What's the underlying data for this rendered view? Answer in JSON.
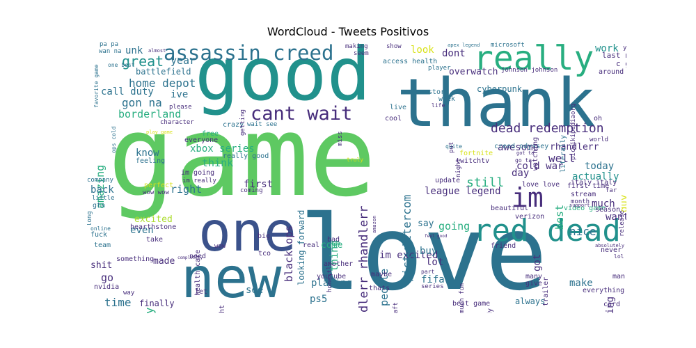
{
  "title": "WordCloud - Tweets Positivos",
  "words": [
    "game",
    "love",
    "good",
    "thank",
    "one",
    "new",
    "red dead",
    "really",
    "im",
    "assassin creed",
    "cant wait",
    "dead redemption",
    "great",
    "year",
    "home depot",
    "call duty",
    "gon na",
    "borderland",
    "unk",
    "ive",
    "amazing",
    "xbox series",
    "know",
    "think",
    "right",
    "back",
    "excited",
    "even",
    "fun",
    "play",
    "time",
    "go",
    "shit",
    "made",
    "damn",
    "feel",
    "black ops",
    "looking forward",
    "thing",
    "first",
    "see",
    "ps5",
    "playing",
    "rhandlerr rhandlerr",
    "people",
    "im excited",
    "pictwittercom",
    "still",
    "actually",
    "nice",
    "much",
    "awesome",
    "best",
    "well",
    "cold war",
    "day",
    "league legend",
    "going",
    "say",
    "lot",
    "fifa",
    "make",
    "fucking",
    "look",
    "dont",
    "overwatch",
    "cyberpunk",
    "today",
    "guy",
    "rhandlerr",
    "work",
    "access health",
    "player",
    "johnson johnson",
    "story",
    "week",
    "fortnite",
    "twitchtv",
    "creed odyssey",
    "always",
    "hearthstone",
    "health care",
    "youtube",
    "really good",
    "love love",
    "come",
    "got",
    "want",
    "battlefield",
    "picwikipediaorg",
    "last night",
    "c go",
    "around",
    "oh",
    "first time",
    "stream",
    "trailer",
    "friend",
    "beautiful",
    "video game",
    "season",
    "tonight",
    "bad",
    "csgo",
    "verizon",
    "update",
    "hope",
    "buy",
    "much fun",
    "world warcraft",
    "best game",
    "already",
    "gta",
    "nvidia",
    "fuck",
    "team",
    "online",
    "little",
    "company",
    "feeling",
    "long",
    "finally",
    "wan na",
    "favorite game",
    "apex legend",
    "microsoft",
    "making",
    "seem",
    "show",
    "wait see",
    "crazy",
    "everyone",
    "free",
    "wow",
    "need",
    "let",
    "italy italy",
    "literally",
    "watching",
    "character",
    "please",
    "ops cold",
    "pa pa",
    "one best",
    "almost",
    "life",
    "live",
    "put",
    "night",
    "cool",
    "maybe",
    "thats",
    "another",
    "part",
    "series",
    "give",
    "many",
    "card",
    "man",
    "everything",
    "never",
    "absolutely",
    "support",
    "month",
    "release",
    "far",
    "getting",
    "miss",
    "honestly",
    "amazon",
    "play game",
    "im going",
    "perfect",
    "wow wow",
    "im really",
    "take",
    "coming",
    "real",
    "tco",
    "big",
    "something",
    "way",
    "completely",
    "go ta",
    "quite",
    "truly",
    "lol",
    "youre",
    "feel good",
    "world",
    "got ta"
  ],
  "colors": {
    "green": "#5ec962",
    "teal": "#21918c",
    "blue": "#3b528b",
    "purple": "#440154",
    "lime": "#addc30",
    "seafoam": "#28ae80",
    "ocean": "#2c728e",
    "indigo": "#472d7b",
    "yellow": "#d8e219"
  }
}
